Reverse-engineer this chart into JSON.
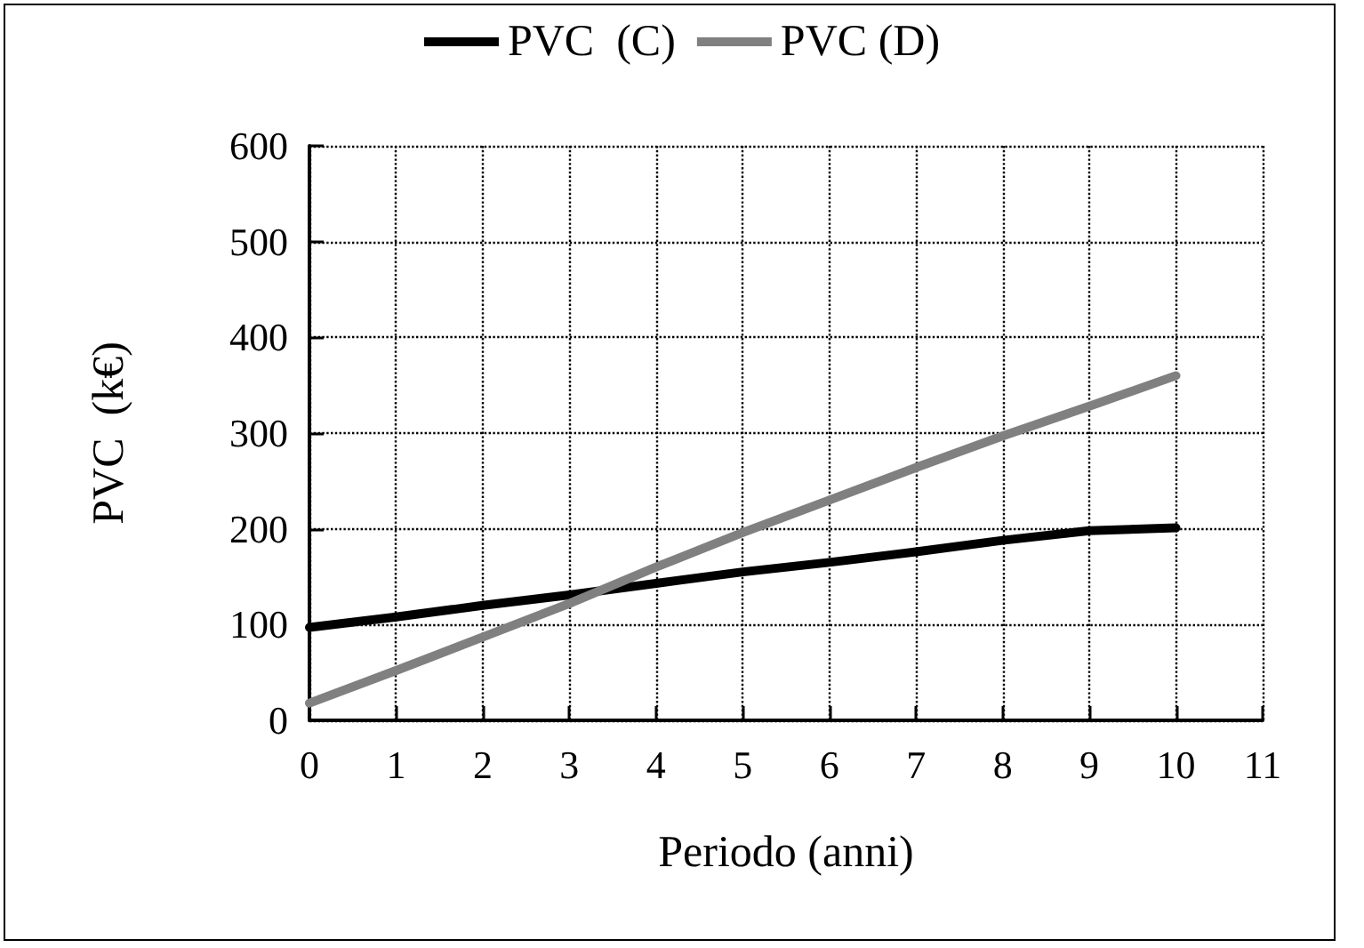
{
  "chart_data": {
    "type": "line",
    "xlabel": "Periodo (anni)",
    "ylabel": "PVC  (k€)",
    "x": [
      0,
      1,
      2,
      3,
      4,
      5,
      6,
      7,
      8,
      9,
      10
    ],
    "series": [
      {
        "name": "PVC  (C)",
        "color": "#000000",
        "values": [
          97,
          108,
          120,
          131,
          143,
          155,
          165,
          176,
          188,
          198,
          201
        ]
      },
      {
        "name": "PVC (D)",
        "color": "#808080",
        "values": [
          18,
          52,
          87,
          122,
          160,
          196,
          230,
          264,
          297,
          328,
          360
        ]
      }
    ],
    "xlim": [
      0,
      11
    ],
    "xticks": [
      0,
      1,
      2,
      3,
      4,
      5,
      6,
      7,
      8,
      9,
      10,
      11
    ],
    "ylim": [
      0,
      600
    ],
    "yticks": [
      0,
      100,
      200,
      300,
      400,
      500,
      600
    ],
    "grid": true,
    "legend": "top",
    "marker": "none",
    "line_style": "solid"
  }
}
